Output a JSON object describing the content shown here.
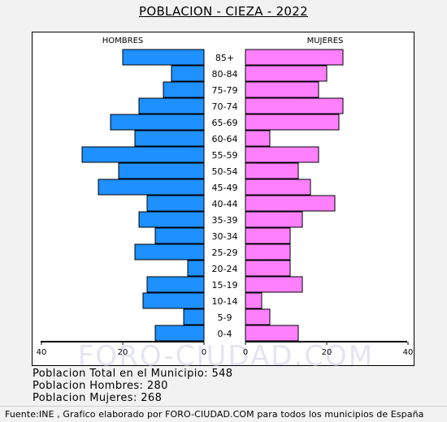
{
  "title": "POBLACION - CIEZA - 2022",
  "chart_data": {
    "type": "bar",
    "orientation": "horizontal-pyramid",
    "categories": [
      "85+",
      "80-84",
      "75-79",
      "70-74",
      "65-69",
      "60-64",
      "55-59",
      "50-54",
      "45-49",
      "40-44",
      "35-39",
      "30-34",
      "25-29",
      "20-24",
      "15-19",
      "10-14",
      "5-9",
      "0-4"
    ],
    "series": [
      {
        "name": "HOMBRES",
        "side": "left",
        "color": "#1e90ff",
        "values": [
          20,
          8,
          10,
          16,
          23,
          17,
          30,
          21,
          26,
          14,
          16,
          12,
          17,
          4,
          14,
          15,
          5,
          12
        ]
      },
      {
        "name": "MUJERES",
        "side": "right",
        "color": "#ff80ff",
        "values": [
          24,
          20,
          18,
          24,
          23,
          6,
          18,
          13,
          16,
          22,
          14,
          11,
          11,
          11,
          14,
          4,
          6,
          13
        ]
      }
    ],
    "x_ticks_left": [
      "40",
      "20",
      "0"
    ],
    "x_ticks_right": [
      "0",
      "20",
      "40"
    ],
    "xlim": [
      0,
      40
    ],
    "grid": false,
    "watermark": "FORO-CIUDAD.COM"
  },
  "stats": {
    "total": "Poblacion Total en el Municipio: 548",
    "men": "Poblacion Hombres: 280",
    "women": "Poblacion Mujeres: 268"
  },
  "source": "Fuente:INE , Grafico elaborado por FORO-CIUDAD.COM para todos los municipios de España"
}
